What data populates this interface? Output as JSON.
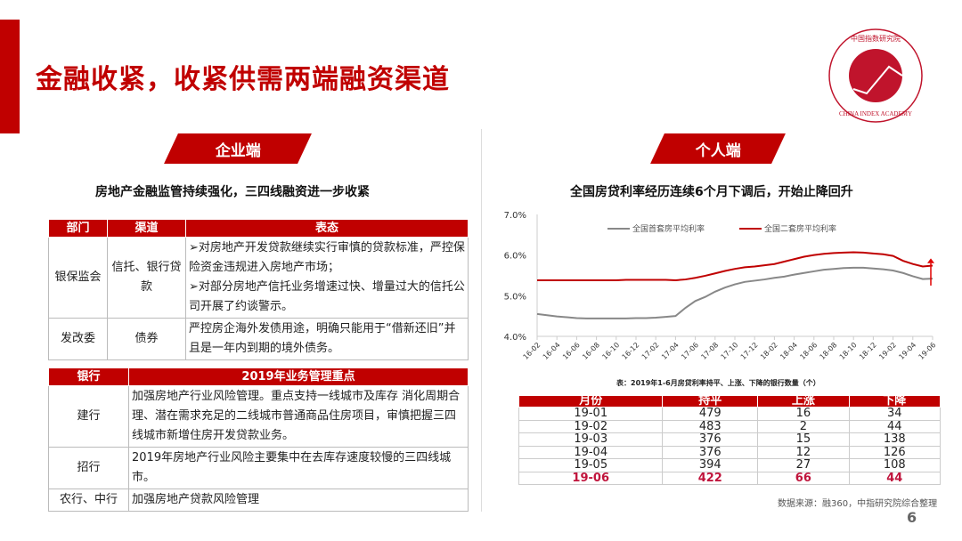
{
  "title": "金融收紧，收紧供需两端融资渠道",
  "logo": {
    "text_cn": "中国指数研究院",
    "text_en": "CHINA INDEX ACADEMY",
    "center": "中 指",
    "color": "#c0142c"
  },
  "left": {
    "tag": "企业端",
    "subtitle": "房地产金融监管持续强化，三四线融资进一步收紧",
    "table1": {
      "headers": [
        "部门",
        "渠道",
        "表态"
      ],
      "rows": [
        {
          "dept": "银保监会",
          "channel": "信托、银行贷款",
          "statements": [
            "➢对房地产开发贷款继续实行审慎的贷款标准，严控保险资金违规进入房地产市场；",
            "➢对部分房地产信托业务增速过快、增量过大的信托公司开展了约谈警示。"
          ]
        },
        {
          "dept": "发改委",
          "channel": "债券",
          "statements": [
            "严控房企海外发债用途，明确只能用于“借新还旧”并且是一年内到期的境外债务。"
          ]
        }
      ]
    },
    "table2": {
      "headers": [
        "银行",
        "2019年业务管理重点"
      ],
      "rows": [
        {
          "bank": "建行",
          "focus": "加强房地产行业风险管理。重点支持一线城市及库存  消化周期合理、潜在需求充足的二线城市普通商品住房项目，审慎把握三四线城市新增住房开发贷款业务。"
        },
        {
          "bank": "招行",
          "focus": "2019年房地产行业风险主要集中在去库存速度较慢的三四线城市。"
        },
        {
          "bank": "农行、中行",
          "focus": "加强房地产贷款风险管理"
        }
      ]
    }
  },
  "right": {
    "tag": "个人端",
    "subtitle": "全国房贷利率经历连续6个月下调后，开始止降回升",
    "table_caption": "表：2019年1-6月房贷利率持平、上涨、下降的银行数量（个）",
    "table": {
      "headers": [
        "月份",
        "持平",
        "上涨",
        "下降"
      ],
      "rows": [
        [
          "19-01",
          "479",
          "16",
          "34"
        ],
        [
          "19-02",
          "483",
          "2",
          "44"
        ],
        [
          "19-03",
          "376",
          "15",
          "138"
        ],
        [
          "19-04",
          "376",
          "12",
          "126"
        ],
        [
          "19-05",
          "394",
          "27",
          "108"
        ],
        [
          "19-06",
          "422",
          "66",
          "44"
        ]
      ],
      "highlight_row": "19-06"
    },
    "source": "数据来源：融360，中指研究院综合整理"
  },
  "page_number": "6",
  "chart_data": {
    "type": "line",
    "ylim": [
      4.0,
      7.0
    ],
    "yticks": [
      "4.0%",
      "5.0%",
      "6.0%",
      "7.0%"
    ],
    "xticks": [
      "16-02",
      "16-04",
      "16-06",
      "16-08",
      "16-10",
      "16-12",
      "17-02",
      "17-04",
      "17-06",
      "17-08",
      "17-10",
      "17-12",
      "18-02",
      "18-04",
      "18-06",
      "18-08",
      "18-10",
      "18-12",
      "19-02",
      "19-04",
      "19-06"
    ],
    "x": [
      "16-02",
      "16-03",
      "16-04",
      "16-05",
      "16-06",
      "16-07",
      "16-08",
      "16-09",
      "16-10",
      "16-11",
      "16-12",
      "17-01",
      "17-02",
      "17-03",
      "17-04",
      "17-05",
      "17-06",
      "17-07",
      "17-08",
      "17-09",
      "17-10",
      "17-11",
      "17-12",
      "18-01",
      "18-02",
      "18-03",
      "18-04",
      "18-05",
      "18-06",
      "18-07",
      "18-08",
      "18-09",
      "18-10",
      "18-11",
      "18-12",
      "19-01",
      "19-02",
      "19-03",
      "19-04",
      "19-05",
      "19-06"
    ],
    "legend_position": "top",
    "annotation": "up-arrow at 19-06",
    "series": [
      {
        "name": "全国首套房平均利率",
        "color": "#888888",
        "values": [
          4.55,
          4.52,
          4.49,
          4.47,
          4.45,
          4.44,
          4.44,
          4.44,
          4.44,
          4.44,
          4.45,
          4.45,
          4.46,
          4.48,
          4.5,
          4.7,
          4.87,
          4.97,
          5.1,
          5.2,
          5.28,
          5.34,
          5.37,
          5.4,
          5.44,
          5.47,
          5.52,
          5.56,
          5.6,
          5.64,
          5.66,
          5.68,
          5.69,
          5.69,
          5.67,
          5.65,
          5.62,
          5.56,
          5.48,
          5.41,
          5.42
        ]
      },
      {
        "name": "全国二套房平均利率",
        "color": "#c00000",
        "values": [
          5.38,
          5.38,
          5.38,
          5.38,
          5.38,
          5.38,
          5.38,
          5.38,
          5.38,
          5.39,
          5.39,
          5.39,
          5.39,
          5.39,
          5.38,
          5.4,
          5.44,
          5.49,
          5.55,
          5.61,
          5.66,
          5.7,
          5.72,
          5.75,
          5.78,
          5.84,
          5.9,
          5.96,
          6.0,
          6.03,
          6.05,
          6.06,
          6.07,
          6.06,
          6.04,
          6.02,
          5.98,
          5.86,
          5.78,
          5.72,
          5.74
        ]
      }
    ]
  }
}
